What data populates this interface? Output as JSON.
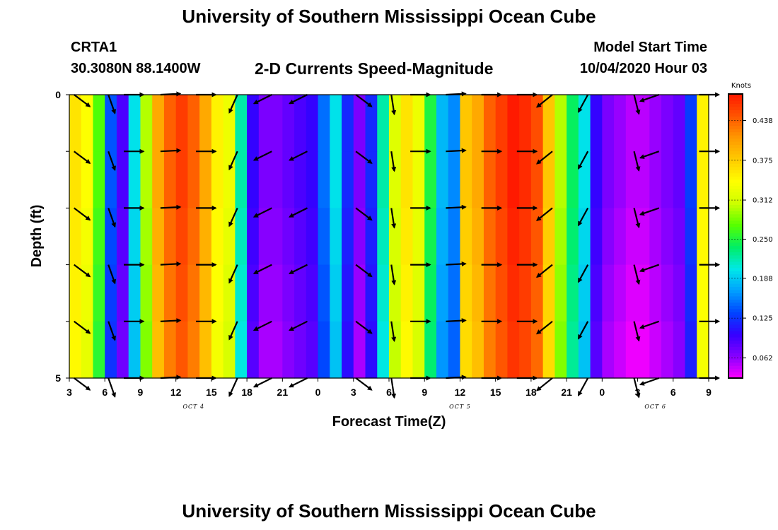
{
  "header": {
    "title": "University of Southern Mississippi Ocean Cube",
    "station_id": "CRTA1",
    "station_coords": "30.3080N 88.1400W",
    "chart_title": "2-D Currents Speed-Magnitude",
    "model_start_label": "Model Start Time",
    "model_start_value": "10/04/2020 Hour 03"
  },
  "footer": {
    "title": "University of Southern Mississippi Ocean Cube"
  },
  "chart_data": {
    "type": "heatmap",
    "title": "2-D Currents Speed-Magnitude",
    "xlabel": "Forecast Time(Z)",
    "ylabel": "Depth (ft)",
    "units": "Knots",
    "x_unit": "hours since 10/04 03Z",
    "xlim": [
      0,
      54
    ],
    "ylim": [
      0,
      5
    ],
    "x_tick_hours": [
      0,
      3,
      6,
      9,
      12,
      15,
      18,
      21,
      24,
      27,
      30,
      33,
      36,
      39,
      42,
      45,
      48,
      51,
      54
    ],
    "x_tick_labels": [
      "3",
      "6",
      "9",
      "12",
      "15",
      "18",
      "21",
      "0",
      "3",
      "6",
      "9",
      "12",
      "15",
      "18",
      "21",
      "0",
      "3",
      "6",
      "9"
    ],
    "day_labels": [
      {
        "hour": 10.5,
        "text": "OCT 4"
      },
      {
        "hour": 33,
        "text": "OCT 5"
      },
      {
        "hour": 49.5,
        "text": "OCT 6"
      }
    ],
    "y_tick_values": [
      0,
      5
    ],
    "y_tick_labels": [
      "0",
      "5"
    ],
    "colorbar": {
      "label": "Knots",
      "min": 0.03,
      "max": 0.48,
      "tick_values": [
        0.062,
        0.125,
        0.188,
        0.25,
        0.312,
        0.375,
        0.438
      ],
      "tick_labels": [
        "0.062",
        "0.125",
        "0.188",
        "0.250",
        "0.312",
        "0.375",
        "0.438"
      ],
      "colors": [
        "#ff00ff",
        "#8800ff",
        "#3500ff",
        "#0044ff",
        "#00a0ff",
        "#00e8e8",
        "#00ee66",
        "#55ff00",
        "#ccff00",
        "#ffff00",
        "#ffcc00",
        "#ff9900",
        "#ff5500",
        "#ff1a00"
      ]
    },
    "speed_time_hours": [
      0,
      1,
      2,
      3,
      4,
      5,
      6,
      7,
      8,
      9,
      10,
      11,
      12,
      13,
      14,
      15,
      16,
      17,
      18,
      19,
      20,
      21,
      22,
      23,
      24,
      25,
      26,
      27,
      28,
      29,
      30,
      31,
      32,
      33,
      34,
      35,
      36,
      37,
      38,
      39,
      40,
      41,
      42,
      43,
      44,
      45,
      46,
      47,
      48,
      49,
      50,
      51,
      52,
      53,
      54
    ],
    "speed_surface_knots": [
      0.36,
      0.34,
      0.27,
      0.14,
      0.09,
      0.2,
      0.3,
      0.4,
      0.44,
      0.46,
      0.44,
      0.4,
      0.35,
      0.33,
      0.22,
      0.1,
      0.07,
      0.07,
      0.08,
      0.09,
      0.1,
      0.15,
      0.2,
      0.12,
      0.07,
      0.12,
      0.22,
      0.32,
      0.36,
      0.33,
      0.25,
      0.18,
      0.16,
      0.38,
      0.4,
      0.44,
      0.46,
      0.48,
      0.47,
      0.45,
      0.38,
      0.3,
      0.24,
      0.2,
      0.1,
      0.07,
      0.06,
      0.05,
      0.05,
      0.06,
      0.07,
      0.08,
      0.13,
      0.35,
      0.3
    ],
    "speed_depth_offsets_ft": [
      0,
      1,
      2,
      3,
      4,
      5
    ],
    "speed_depth_delta_knots": [
      0,
      0,
      -0.005,
      -0.01,
      -0.015,
      -0.02
    ],
    "vector_rows_ft": [
      0,
      1,
      2,
      3,
      4,
      5
    ],
    "vectors": [
      {
        "hour": 0.4,
        "u": 1.0,
        "v": -0.75
      },
      {
        "hour": 3.3,
        "u": 0.35,
        "v": -1.0
      },
      {
        "hour": 4.6,
        "u": 1.0,
        "v": 0.0
      },
      {
        "hour": 7.7,
        "u": 1.0,
        "v": 0.05
      },
      {
        "hour": 10.7,
        "u": 1.0,
        "v": 0.0
      },
      {
        "hour": 14.2,
        "u": -0.45,
        "v": -1.0
      },
      {
        "hour": 17.1,
        "u": -1.0,
        "v": -0.5
      },
      {
        "hour": 20.1,
        "u": -1.0,
        "v": -0.5
      },
      {
        "hour": 24.2,
        "u": 1.0,
        "v": -0.75
      },
      {
        "hour": 27.2,
        "u": 0.15,
        "v": -1.0
      },
      {
        "hour": 28.8,
        "u": 1.0,
        "v": 0.0
      },
      {
        "hour": 31.8,
        "u": 1.0,
        "v": 0.05
      },
      {
        "hour": 34.8,
        "u": 1.0,
        "v": 0.0
      },
      {
        "hour": 37.8,
        "u": 1.0,
        "v": 0.0
      },
      {
        "hour": 40.8,
        "u": -1.0,
        "v": -0.8
      },
      {
        "hour": 43.8,
        "u": -0.55,
        "v": -1.0
      },
      {
        "hour": 47.7,
        "u": 0.25,
        "v": -1.0
      },
      {
        "hour": 49.8,
        "u": -1.0,
        "v": -0.35
      },
      {
        "hour": 53.2,
        "u": 1.0,
        "v": 0.0
      }
    ]
  }
}
